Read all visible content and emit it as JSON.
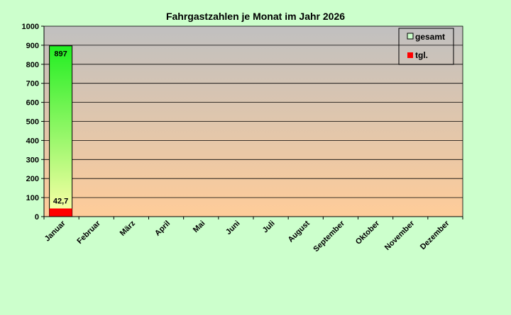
{
  "chart_data": {
    "type": "bar",
    "title": "Fahrgastzahlen je Monat im Jahr 2026",
    "xlabel": "",
    "ylabel": "",
    "ylim": [
      0,
      1000
    ],
    "ytick_step": 100,
    "grid": true,
    "legend_position": "top-right",
    "categories": [
      "Januar",
      "Februar",
      "März",
      "April",
      "Mai",
      "Juni",
      "Juli",
      "August",
      "September",
      "Oktober",
      "November",
      "Dezember"
    ],
    "series": [
      {
        "name": "gesamt",
        "values": [
          897,
          null,
          null,
          null,
          null,
          null,
          null,
          null,
          null,
          null,
          null,
          null
        ],
        "value_labels": [
          "897",
          "",
          "",
          "",
          "",
          "",
          "",
          "",
          "",
          "",
          "",
          ""
        ],
        "color_top": "#22ee22",
        "color_bottom": "#ffffaa",
        "legend_color": "#ccffcc"
      },
      {
        "name": "tgl.",
        "values": [
          42.7,
          null,
          null,
          null,
          null,
          null,
          null,
          null,
          null,
          null,
          null,
          null
        ],
        "value_labels": [
          "42,7",
          "",
          "",
          "",
          "",
          "",
          "",
          "",
          "",
          "",
          "",
          ""
        ],
        "color": "#ff0000"
      }
    ],
    "colors": {
      "plot_top": "#c0c0c0",
      "plot_bottom": "#ffcc99",
      "gridline": "#000000",
      "background": "#ccffcc"
    }
  }
}
